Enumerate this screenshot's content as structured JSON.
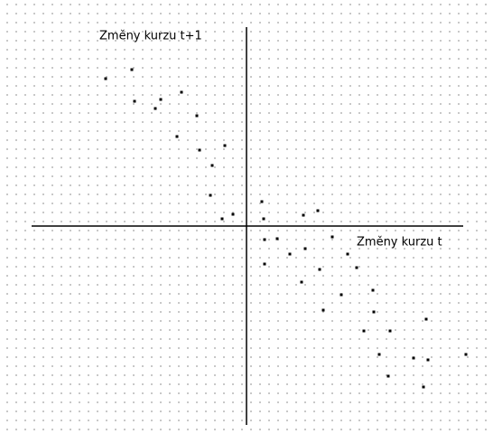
{
  "chart_data": {
    "type": "scatter",
    "xlabel": "Změny kurzu t",
    "ylabel": "Změny kurzu t+1",
    "color": "#000000",
    "xlim": [
      -24,
      24
    ],
    "ylim": [
      -22,
      22
    ],
    "x": [
      -15.6,
      -12.7,
      -12.4,
      -10.1,
      -9.5,
      -7.2,
      -5.5,
      -7.7,
      -5.2,
      -2.4,
      -3.8,
      -4.0,
      -2.7,
      -1.5,
      1.7,
      1.9,
      6.3,
      7.9,
      2.0,
      3.4,
      4.8,
      6.5,
      9.5,
      2.0,
      8.1,
      11.2,
      12.2,
      6.1,
      10.5,
      14.0,
      8.5,
      14.1,
      13.0,
      15.9,
      19.9,
      14.7,
      18.5,
      20.1,
      24.3,
      15.7,
      19.6
    ],
    "values": [
      16.3,
      17.3,
      13.8,
      13.0,
      14.0,
      14.8,
      12.2,
      9.9,
      8.4,
      8.9,
      6.7,
      3.4,
      0.8,
      1.3,
      2.7,
      0.8,
      1.2,
      1.7,
      -1.5,
      -1.4,
      -3.1,
      -2.5,
      -1.2,
      -4.2,
      -4.8,
      -3.1,
      -4.6,
      -6.2,
      -7.6,
      -7.1,
      -9.3,
      -9.5,
      -11.6,
      -11.6,
      -10.3,
      -14.2,
      -14.6,
      -14.8,
      -14.2,
      -16.6,
      -17.8
    ]
  }
}
